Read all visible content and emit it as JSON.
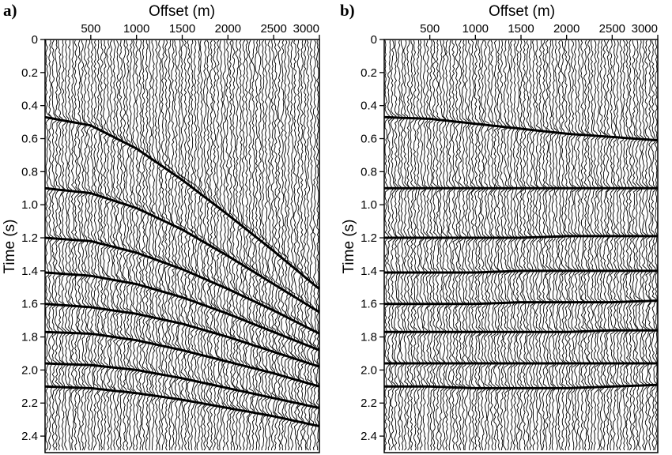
{
  "chart_data": [
    {
      "panel_label": "a)",
      "type": "line",
      "description_kind": "seismic shot gather (wiggle traces)",
      "xlabel": "Offset (m)",
      "ylabel": "Time (s)",
      "xlim": [
        0,
        3000
      ],
      "ylim": [
        2.5,
        0
      ],
      "x_ticks": [
        500,
        1000,
        1500,
        2000,
        2500,
        3000
      ],
      "x_tick_labels": [
        "500",
        "1000",
        "1500",
        "2000",
        "2500",
        "3000"
      ],
      "y_ticks": [
        0,
        0.2,
        0.4,
        0.6,
        0.8,
        1.0,
        1.2,
        1.4,
        1.6,
        1.8,
        2.0,
        2.2,
        2.4
      ],
      "y_tick_labels": [
        "0",
        "0.2",
        "0.4",
        "0.6",
        "0.8",
        "1.0",
        "1.2",
        "1.4",
        "1.6",
        "1.8",
        "2.0",
        "2.2",
        "2.4"
      ],
      "grid": false,
      "series": [
        {
          "x": [
            0,
            500,
            1000,
            1500,
            2000,
            2500,
            3000
          ],
          "y": [
            0.47,
            0.52,
            0.66,
            0.85,
            1.06,
            1.28,
            1.51
          ]
        },
        {
          "x": [
            0,
            500,
            1000,
            1500,
            2000,
            2500,
            3000
          ],
          "y": [
            0.9,
            0.93,
            1.02,
            1.15,
            1.31,
            1.48,
            1.65
          ]
        },
        {
          "x": [
            0,
            500,
            1000,
            1500,
            2000,
            2500,
            3000
          ],
          "y": [
            1.2,
            1.22,
            1.29,
            1.39,
            1.51,
            1.64,
            1.78
          ]
        },
        {
          "x": [
            0,
            500,
            1000,
            1500,
            2000,
            2500,
            3000
          ],
          "y": [
            1.41,
            1.43,
            1.48,
            1.56,
            1.66,
            1.77,
            1.88
          ]
        },
        {
          "x": [
            0,
            500,
            1000,
            1500,
            2000,
            2500,
            3000
          ],
          "y": [
            1.6,
            1.62,
            1.66,
            1.72,
            1.8,
            1.89,
            1.98
          ]
        },
        {
          "x": [
            0,
            500,
            1000,
            1500,
            2000,
            2500,
            3000
          ],
          "y": [
            1.77,
            1.78,
            1.82,
            1.88,
            1.95,
            2.02,
            2.1
          ]
        },
        {
          "x": [
            0,
            500,
            1000,
            1500,
            2000,
            2500,
            3000
          ],
          "y": [
            1.96,
            1.97,
            2.0,
            2.05,
            2.11,
            2.17,
            2.23
          ]
        },
        {
          "x": [
            0,
            500,
            1000,
            1500,
            2000,
            2500,
            3000
          ],
          "y": [
            2.1,
            2.11,
            2.14,
            2.18,
            2.23,
            2.28,
            2.34
          ]
        }
      ]
    },
    {
      "panel_label": "b)",
      "type": "line",
      "description_kind": "seismic gather after NMO correction (wiggle traces)",
      "xlabel": "Offset (m)",
      "ylabel": "Time (s)",
      "xlim": [
        0,
        3000
      ],
      "ylim": [
        2.5,
        0
      ],
      "x_ticks": [
        500,
        1000,
        1500,
        2000,
        2500,
        3000
      ],
      "x_tick_labels": [
        "500",
        "1000",
        "1500",
        "2000",
        "2500",
        "3000"
      ],
      "y_ticks": [
        0,
        0.2,
        0.4,
        0.6,
        0.8,
        1.0,
        1.2,
        1.4,
        1.6,
        1.8,
        2.0,
        2.2,
        2.4
      ],
      "y_tick_labels": [
        "0",
        "0.2",
        "0.4",
        "0.6",
        "0.8",
        "1.0",
        "1.2",
        "1.4",
        "1.6",
        "1.8",
        "2.0",
        "2.2",
        "2.4"
      ],
      "grid": false,
      "series": [
        {
          "x": [
            0,
            500,
            1000,
            1500,
            2000,
            2500,
            3000
          ],
          "y": [
            0.47,
            0.48,
            0.51,
            0.54,
            0.57,
            0.59,
            0.61
          ]
        },
        {
          "x": [
            0,
            500,
            1000,
            1500,
            2000,
            2500,
            3000
          ],
          "y": [
            0.9,
            0.9,
            0.9,
            0.9,
            0.9,
            0.9,
            0.9
          ]
        },
        {
          "x": [
            0,
            500,
            1000,
            1500,
            2000,
            2500,
            3000
          ],
          "y": [
            1.2,
            1.2,
            1.2,
            1.2,
            1.19,
            1.19,
            1.19
          ]
        },
        {
          "x": [
            0,
            500,
            1000,
            1500,
            2000,
            2500,
            3000
          ],
          "y": [
            1.41,
            1.41,
            1.41,
            1.4,
            1.4,
            1.4,
            1.4
          ]
        },
        {
          "x": [
            0,
            500,
            1000,
            1500,
            2000,
            2500,
            3000
          ],
          "y": [
            1.6,
            1.6,
            1.6,
            1.59,
            1.59,
            1.59,
            1.58
          ]
        },
        {
          "x": [
            0,
            500,
            1000,
            1500,
            2000,
            2500,
            3000
          ],
          "y": [
            1.77,
            1.77,
            1.77,
            1.77,
            1.77,
            1.76,
            1.76
          ]
        },
        {
          "x": [
            0,
            500,
            1000,
            1500,
            2000,
            2500,
            3000
          ],
          "y": [
            1.96,
            1.96,
            1.96,
            1.96,
            1.96,
            1.96,
            1.96
          ]
        },
        {
          "x": [
            0,
            500,
            1000,
            1500,
            2000,
            2500,
            3000
          ],
          "y": [
            2.1,
            2.1,
            2.11,
            2.11,
            2.11,
            2.1,
            2.09
          ]
        }
      ]
    }
  ]
}
